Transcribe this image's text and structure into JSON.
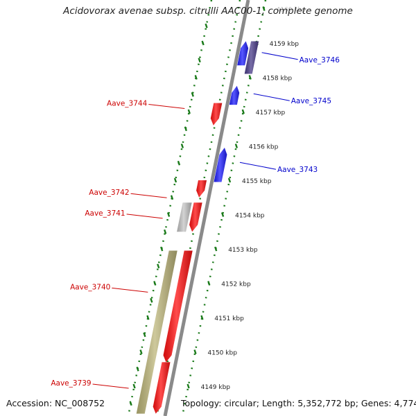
{
  "title": "Acidovorax avenae subsp. citrulli AAC00-1, complete genome",
  "footer": {
    "accession": "Accession: NC_008752",
    "summary": "Topology: circular; Length: 5,352,772 bp; Genes: 4,774"
  },
  "colors": {
    "forward_gene": "#1f1fff",
    "reverse_gene": "#ff1010",
    "rna_gene": "#4a3c8a",
    "other_feature": "#c4c4c4",
    "region": "#bdb67a",
    "backbone": "#8a8a8a",
    "tick_major": "#1a7a1a",
    "tick_minor": "#1a7a1a",
    "forward_label": "#0000cc",
    "reverse_label": "#cc0000"
  },
  "ruler_ticks": [
    {
      "kbp": 4160,
      "label": "4160 kbp",
      "faded": true
    },
    {
      "kbp": 4159,
      "label": "4159 kbp"
    },
    {
      "kbp": 4158,
      "label": "4158 kbp"
    },
    {
      "kbp": 4157,
      "label": "4157 kbp"
    },
    {
      "kbp": 4156,
      "label": "4156 kbp"
    },
    {
      "kbp": 4155,
      "label": "4155 kbp"
    },
    {
      "kbp": 4154,
      "label": "4154 kbp"
    },
    {
      "kbp": 4153,
      "label": "4153 kbp"
    },
    {
      "kbp": 4152,
      "label": "4152 kbp"
    },
    {
      "kbp": 4151,
      "label": "4151 kbp"
    },
    {
      "kbp": 4150,
      "label": "4150 kbp"
    },
    {
      "kbp": 4149,
      "label": "4149 kbp"
    }
  ],
  "features": [
    {
      "type": "gene",
      "strand": "+",
      "start_kbp": 4158.35,
      "end_kbp": 4159.05,
      "color_key": "forward_gene"
    },
    {
      "type": "rna",
      "strand": "+",
      "start_kbp": 4158.1,
      "end_kbp": 4159.05,
      "color_key": "rna_gene"
    },
    {
      "type": "gene",
      "strand": "+",
      "start_kbp": 4157.2,
      "end_kbp": 4157.75,
      "color_key": "forward_gene"
    },
    {
      "type": "gene",
      "strand": "-",
      "start_kbp": 4156.6,
      "end_kbp": 4157.25,
      "color_key": "reverse_gene"
    },
    {
      "type": "gene",
      "strand": "+",
      "start_kbp": 4154.95,
      "end_kbp": 4155.95,
      "color_key": "forward_gene"
    },
    {
      "type": "gene",
      "strand": "-",
      "start_kbp": 4154.5,
      "end_kbp": 4155.0,
      "color_key": "reverse_gene"
    },
    {
      "type": "gene",
      "strand": "-",
      "start_kbp": 4153.5,
      "end_kbp": 4154.35,
      "color_key": "reverse_gene"
    },
    {
      "type": "other",
      "strand": "-",
      "start_kbp": 4153.5,
      "end_kbp": 4154.35,
      "color_key": "other_feature"
    },
    {
      "type": "gene",
      "strand": "-",
      "start_kbp": 4149.7,
      "end_kbp": 4152.95,
      "color_key": "reverse_gene"
    },
    {
      "type": "region",
      "strand": "-",
      "start_kbp": 4148.2,
      "end_kbp": 4152.95,
      "color_key": "region"
    },
    {
      "type": "gene",
      "strand": "-",
      "start_kbp": 4148.2,
      "end_kbp": 4149.7,
      "color_key": "reverse_gene"
    }
  ],
  "labels": [
    {
      "text": "Aave_3746",
      "side": "right",
      "kbp": 4158.6,
      "color_key": "forward_label"
    },
    {
      "text": "Aave_3745",
      "side": "right",
      "kbp": 4157.4,
      "color_key": "forward_label"
    },
    {
      "text": "Aave_3744",
      "side": "left",
      "kbp": 4157.05,
      "color_key": "reverse_label"
    },
    {
      "text": "Aave_3743",
      "side": "right",
      "kbp": 4155.4,
      "color_key": "forward_label"
    },
    {
      "text": "Aave_3742",
      "side": "left",
      "kbp": 4154.45,
      "color_key": "reverse_label"
    },
    {
      "text": "Aave_3741",
      "side": "left",
      "kbp": 4153.85,
      "color_key": "reverse_label"
    },
    {
      "text": "Aave_3740",
      "side": "left",
      "kbp": 4151.7,
      "color_key": "reverse_label"
    },
    {
      "text": "Aave_3739",
      "side": "left",
      "kbp": 4148.9,
      "color_key": "reverse_label"
    }
  ]
}
